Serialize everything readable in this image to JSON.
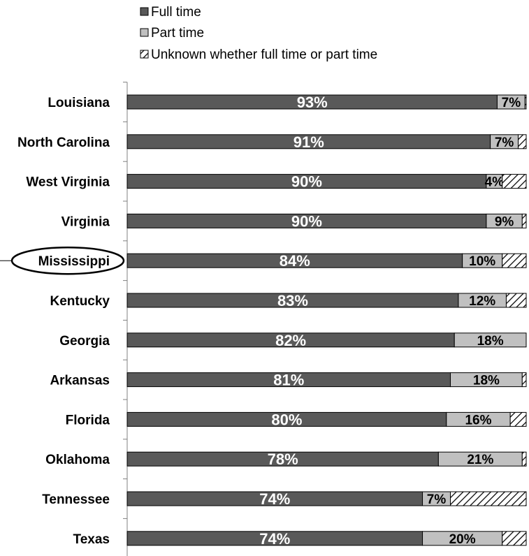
{
  "chart_data": {
    "type": "bar",
    "orientation": "horizontal",
    "stacked": true,
    "title": "",
    "xlabel": "",
    "ylabel": "",
    "xlim": [
      0,
      100
    ],
    "categories": [
      "Louisiana",
      "North Carolina",
      "West Virginia",
      "Virginia",
      "Mississippi",
      "Kentucky",
      "Georgia",
      "Arkansas",
      "Florida",
      "Oklahoma",
      "Tennessee",
      "Texas"
    ],
    "highlighted_category": "Mississippi",
    "series": [
      {
        "name": "Full time",
        "color": "#595959",
        "values": [
          93,
          91,
          90,
          90,
          84,
          83,
          82,
          81,
          80,
          78,
          74,
          74
        ],
        "labels": [
          "93%",
          "91%",
          "90%",
          "90%",
          "84%",
          "83%",
          "82%",
          "81%",
          "80%",
          "78%",
          "74%",
          "74%"
        ]
      },
      {
        "name": "Part time",
        "color": "#c0c0c0",
        "values": [
          7,
          7,
          4,
          9,
          10,
          12,
          18,
          18,
          16,
          21,
          7,
          20
        ],
        "labels": [
          "7%",
          "7%",
          "4%",
          "9%",
          "10%",
          "12%",
          "18%",
          "18%",
          "16%",
          "21%",
          "7%",
          "20%"
        ]
      },
      {
        "name": "Unknown whether full time or part time",
        "color": "#ffffff",
        "pattern": "diagonal-hatch",
        "values": [
          0.3,
          2,
          6,
          1,
          6,
          5,
          0,
          1,
          4,
          1,
          19,
          6
        ]
      }
    ],
    "legend_position": "top",
    "grid": false
  }
}
